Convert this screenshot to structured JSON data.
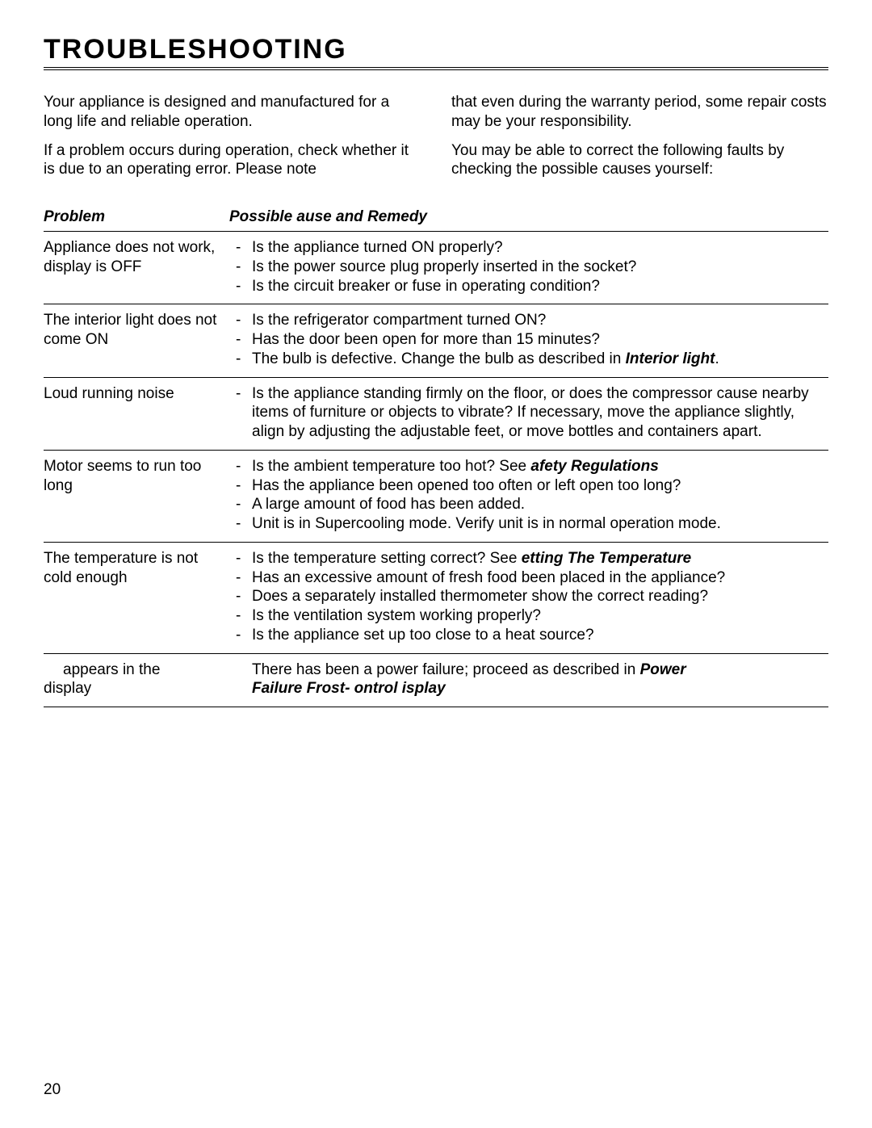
{
  "title": "TROUBLESHOOTING",
  "intro": {
    "left": {
      "p1": "Your appliance is designed and manufactured for a long life and reliable operation.",
      "p2": "If a problem occurs during operation, check whether it is due to an operating error. Please note"
    },
    "right": {
      "p1": "that even during the warranty period, some repair costs may be your responsibility.",
      "p2": "You may be able to correct the following faults by checking the possible causes yourself:"
    }
  },
  "table": {
    "header": {
      "problem": "Problem",
      "remedy_a": "Possible ",
      "remedy_b": "ause and Remedy"
    },
    "rows": [
      {
        "problem": "Appliance does not work, display is OFF",
        "items": [
          {
            "t": "Is the appliance turned ON properly?"
          },
          {
            "t": "Is the power source plug properly inserted in the socket?"
          },
          {
            "t": "Is the circuit breaker or fuse in operating condition?"
          }
        ]
      },
      {
        "problem": "The interior light does not come ON",
        "items": [
          {
            "t": "Is the refrigerator compartment turned ON?"
          },
          {
            "t": "Has the door been open for more than 15 minutes?"
          },
          {
            "pre": "The bulb is defective. Change the bulb as described in ",
            "bi": "Interior light",
            "post": "."
          }
        ]
      },
      {
        "problem": "Loud running noise",
        "items": [
          {
            "t": "Is the appliance standing firmly on the floor, or does the compressor cause nearby items of furniture or objects to vibrate? If necessary, move the appliance slightly, align by adjusting the adjustable feet, or move bottles and containers apart."
          }
        ]
      },
      {
        "problem": "Motor seems to run too long",
        "items": [
          {
            "pre": "Is the ambient temperature too hot? See  ",
            "bi": "afety Regulations"
          },
          {
            "t": "Has the appliance been opened too often or left open too long?"
          },
          {
            "t": "A large amount of food has been added."
          },
          {
            "t": "Unit is in Supercooling mode. Verify unit is in normal operation mode."
          }
        ]
      },
      {
        "problem": "The temperature is not cold enough",
        "items": [
          {
            "pre": "Is the temperature setting correct? See  ",
            "bi": "etting The Temperature"
          },
          {
            "t": "Has an excessive amount of fresh food been placed in the appliance?"
          },
          {
            "t": "Does a separately installed thermometer show the correct reading?"
          },
          {
            "t": "Is the ventilation system working properly?"
          },
          {
            "t": "Is the appliance set up too close to a heat source?"
          }
        ]
      }
    ],
    "lastRow": {
      "problem_line1": " appears in the",
      "problem_line2": "display",
      "remedy_pre": "There has been a power failure; proceed as described in ",
      "remedy_b1": "Power",
      "remedy_bi_line": "Failure   Frost-   ontrol    isplay"
    }
  },
  "pageNumber": "20",
  "colors": {
    "text": "#000000",
    "background": "#ffffff"
  },
  "fontsize": {
    "title": 34,
    "body": 19
  }
}
